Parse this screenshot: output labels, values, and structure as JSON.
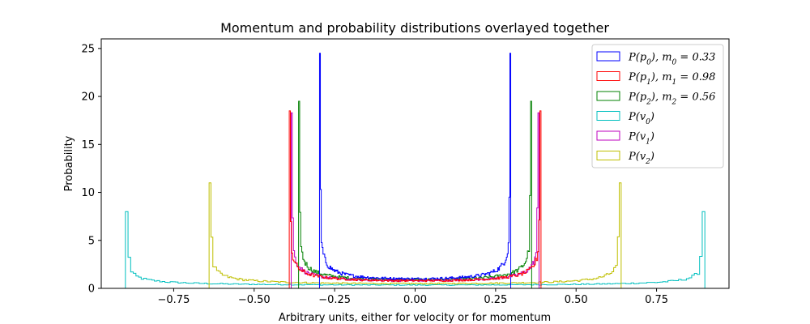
{
  "chart_data": {
    "type": "histogram",
    "title": "Momentum and probability distributions overlayed together",
    "xlabel": "Arbitrary units, either for velocity or for momentum",
    "ylabel": "Probability",
    "xlim": [
      -0.975,
      0.975
    ],
    "ylim": [
      0,
      26
    ],
    "xticks": [
      -0.75,
      -0.5,
      -0.25,
      0.0,
      0.25,
      0.5,
      0.75
    ],
    "xtick_labels": [
      "−0.75",
      "−0.50",
      "−0.25",
      "0.00",
      "0.25",
      "0.50",
      "0.75"
    ],
    "yticks": [
      0,
      5,
      10,
      15,
      20,
      25
    ],
    "ytick_labels": [
      "0",
      "5",
      "10",
      "15",
      "20",
      "25"
    ],
    "grid": false,
    "legend_position": "upper-right",
    "series": [
      {
        "name": "P(p0), m0 = 0.33",
        "color": "#0000ff",
        "edge": 0.297,
        "peak": 24.5,
        "center": 1.0
      },
      {
        "name": "P(p1), m1 = 0.98",
        "color": "#ff0000",
        "edge": 0.391,
        "peak": 18.5,
        "center": 0.8
      },
      {
        "name": "P(p2), m2 = 0.56",
        "color": "#008000",
        "edge": 0.362,
        "peak": 19.5,
        "center": 0.9
      },
      {
        "name": "P(v0)",
        "color": "#00bfbf",
        "edge": 0.9,
        "peak": 8.0,
        "center": 0.35
      },
      {
        "name": "P(v1)",
        "color": "#bf00bf",
        "edge": 0.385,
        "peak": 18.3,
        "center": 0.8
      },
      {
        "name": "P(v2)",
        "color": "#bfbf00",
        "edge": 0.64,
        "peak": 11.0,
        "center": 0.5
      }
    ]
  }
}
